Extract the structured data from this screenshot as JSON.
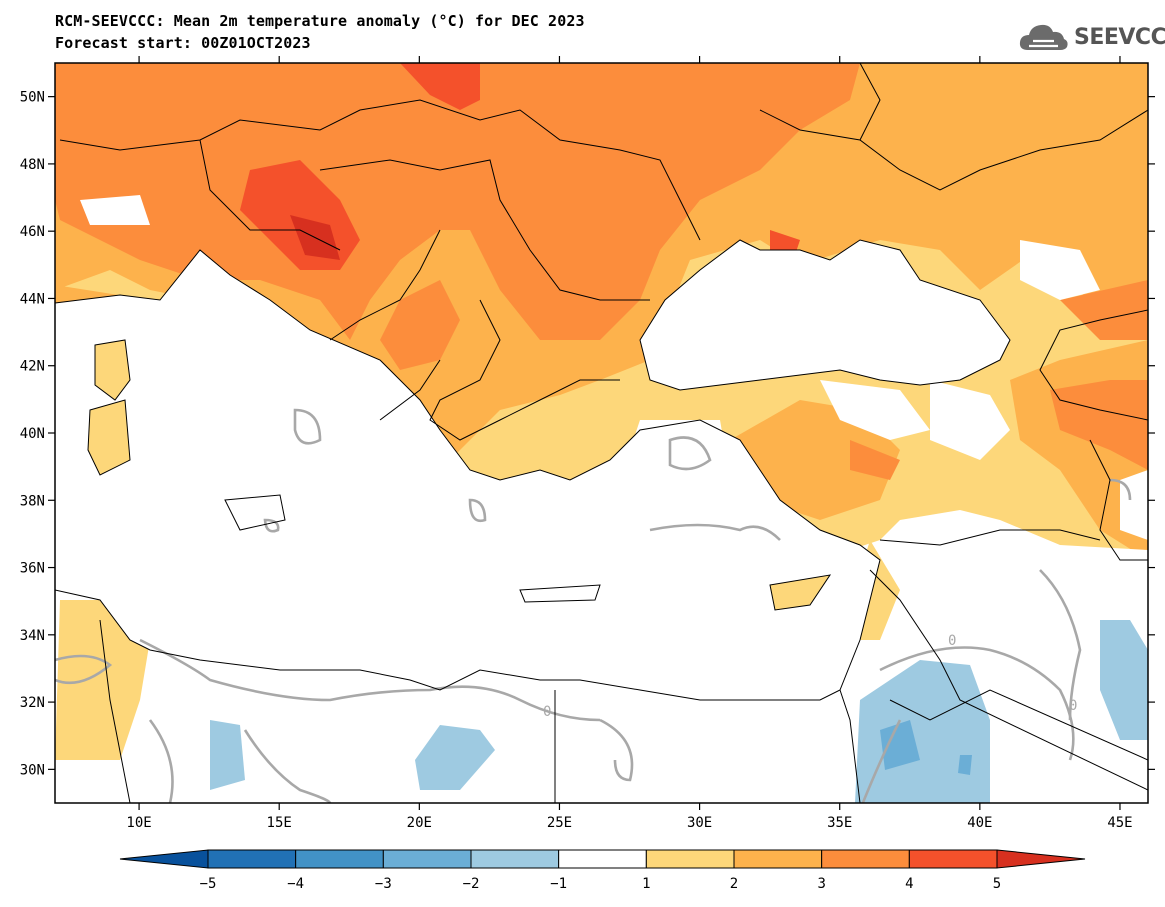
{
  "header": {
    "title": "RCM-SEEVCCC: Mean 2m temperature anomaly (°C) for DEC 2023",
    "subtitle": "Forecast start: 00Z01OCT2023",
    "logo_text": "SEEVCCC",
    "logo_icon": "cloud-icon"
  },
  "map": {
    "lon_range": [
      7,
      46
    ],
    "lat_range": [
      29,
      51
    ],
    "lat_ticks": [
      "50N",
      "48N",
      "46N",
      "44N",
      "42N",
      "40N",
      "38N",
      "36N",
      "34N",
      "32N",
      "30N"
    ],
    "lat_values": [
      50,
      48,
      46,
      44,
      42,
      40,
      38,
      36,
      34,
      32,
      30
    ],
    "lon_ticks": [
      "10E",
      "15E",
      "20E",
      "25E",
      "30E",
      "35E",
      "40E",
      "45E"
    ],
    "lon_values": [
      10,
      15,
      20,
      25,
      30,
      35,
      40,
      45
    ],
    "contour_label": "0",
    "colors": {
      "anom_1_2": "#fdd77a",
      "anom_2_3": "#fdb24c",
      "anom_3_4": "#fc8d3c",
      "anom_4_5": "#f4512b",
      "anom_gt5": "#d7301f",
      "anom_m1_m2": "#9ecae1",
      "anom_m2_m3": "#6baed6",
      "zero_contour": "#a8a8a8",
      "borders": "#000000"
    }
  },
  "colorbar": {
    "labels": [
      "-5",
      "-4",
      "-3",
      "-2",
      "-1",
      "1",
      "2",
      "3",
      "4",
      "5"
    ],
    "colors": [
      "#08519c",
      "#2171b5",
      "#4292c6",
      "#6baed6",
      "#9ecae1",
      "#ffffff",
      "#fdd77a",
      "#fdb24c",
      "#fc8d3c",
      "#f4512b",
      "#d7301f"
    ]
  }
}
